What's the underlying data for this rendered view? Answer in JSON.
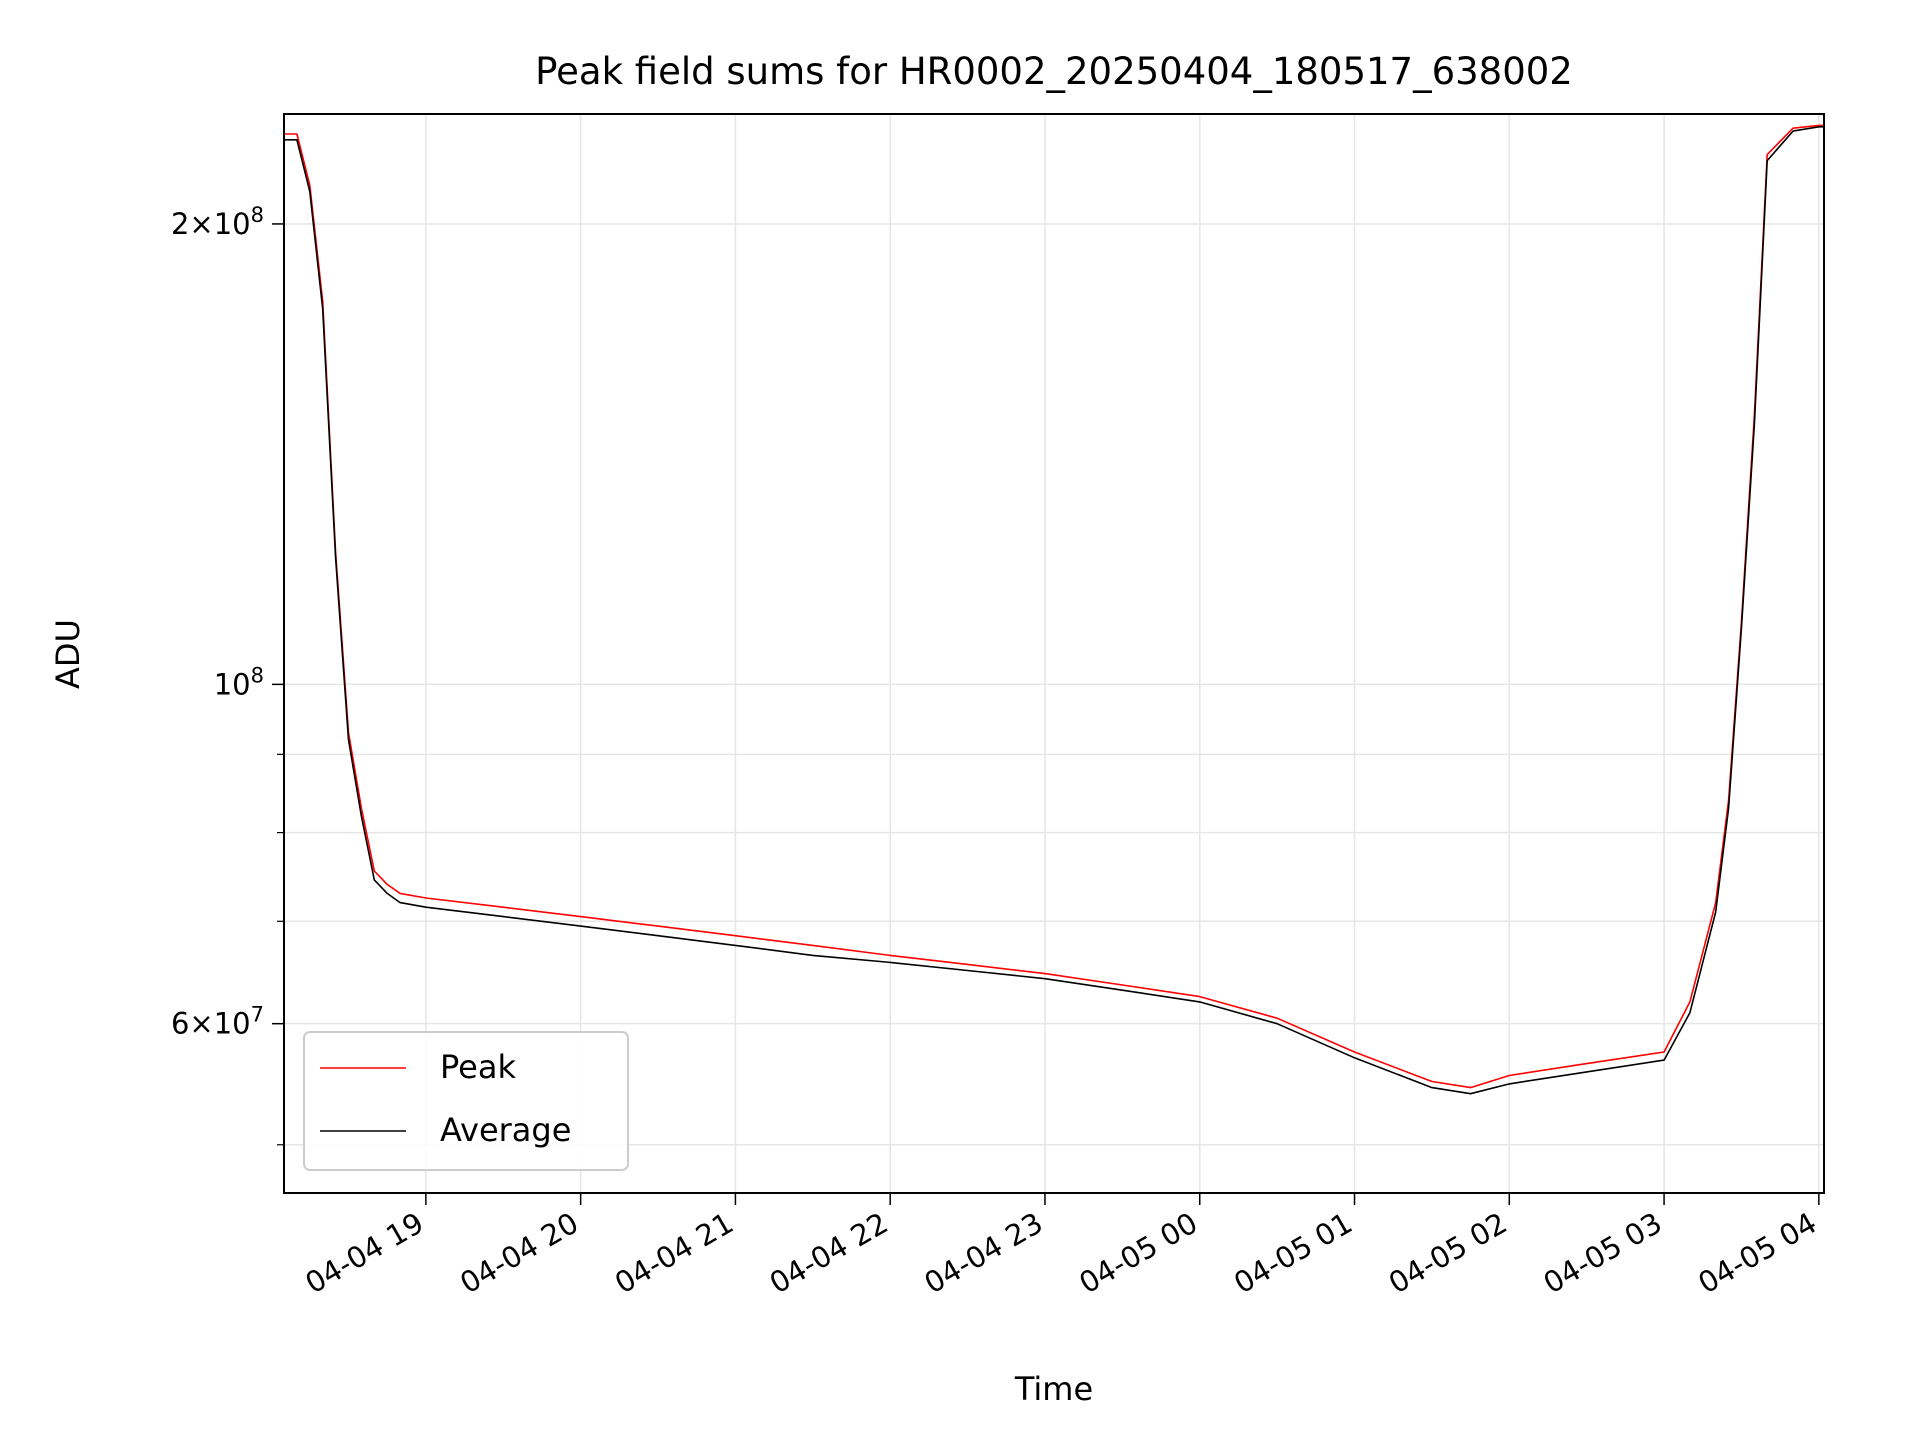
{
  "chart_data": {
    "type": "line",
    "title": "Peak field sums for HR0002_20250404_180517_638002",
    "xlabel": "Time",
    "ylabel": "ADU",
    "yscale": "log",
    "grid": true,
    "legend_position": "lower-left",
    "xlim": [
      "2025-04-04 18:05",
      "2025-04-05 04:02"
    ],
    "ylim": [
      46500000,
      236000000
    ],
    "x_ticks": [
      {
        "value": "2025-04-04 19:00",
        "label": "04-04 19"
      },
      {
        "value": "2025-04-04 20:00",
        "label": "04-04 20"
      },
      {
        "value": "2025-04-04 21:00",
        "label": "04-04 21"
      },
      {
        "value": "2025-04-04 22:00",
        "label": "04-04 22"
      },
      {
        "value": "2025-04-04 23:00",
        "label": "04-04 23"
      },
      {
        "value": "2025-04-05 00:00",
        "label": "04-05 00"
      },
      {
        "value": "2025-04-05 01:00",
        "label": "04-05 01"
      },
      {
        "value": "2025-04-05 02:00",
        "label": "04-05 02"
      },
      {
        "value": "2025-04-05 03:00",
        "label": "04-05 03"
      },
      {
        "value": "2025-04-05 04:00",
        "label": "04-05 04"
      }
    ],
    "y_major_ticks": [
      {
        "value": 200000000,
        "mant": "2",
        "base": "10",
        "exp": "8"
      },
      {
        "value": 100000000,
        "mant": "",
        "base": "10",
        "exp": "8"
      },
      {
        "value": 60000000,
        "mant": "6",
        "base": "10",
        "exp": "7"
      }
    ],
    "y_minor_ticks": [
      50000000,
      70000000,
      80000000,
      90000000
    ],
    "series": [
      {
        "name": "Peak",
        "color": "#ff0000",
        "x": [
          "2025-04-04 18:05",
          "2025-04-04 18:10",
          "2025-04-04 18:15",
          "2025-04-04 18:20",
          "2025-04-04 18:25",
          "2025-04-04 18:30",
          "2025-04-04 18:35",
          "2025-04-04 18:40",
          "2025-04-04 18:45",
          "2025-04-04 18:50",
          "2025-04-04 19:00",
          "2025-04-04 19:30",
          "2025-04-04 20:00",
          "2025-04-04 20:30",
          "2025-04-04 21:00",
          "2025-04-04 21:30",
          "2025-04-04 22:00",
          "2025-04-04 22:30",
          "2025-04-04 23:00",
          "2025-04-04 23:30",
          "2025-04-05 00:00",
          "2025-04-05 00:30",
          "2025-04-05 01:00",
          "2025-04-05 01:30",
          "2025-04-05 01:45",
          "2025-04-05 02:00",
          "2025-04-05 02:30",
          "2025-04-05 03:00",
          "2025-04-05 03:10",
          "2025-04-05 03:20",
          "2025-04-05 03:25",
          "2025-04-05 03:30",
          "2025-04-05 03:35",
          "2025-04-05 03:40",
          "2025-04-05 03:50",
          "2025-04-05 04:00",
          "2025-04-05 04:02"
        ],
        "y": [
          229000000,
          229000000,
          212000000,
          178000000,
          122000000,
          93000000,
          83000000,
          75500000,
          74000000,
          73000000,
          72500000,
          71500000,
          70500000,
          69500000,
          68500000,
          67500000,
          66500000,
          65600000,
          64700000,
          63600000,
          62500000,
          60500000,
          57500000,
          55000000,
          54500000,
          55500000,
          56500000,
          57500000,
          62000000,
          72000000,
          84000000,
          110000000,
          150000000,
          222000000,
          231000000,
          232000000,
          232000000
        ]
      },
      {
        "name": "Average",
        "color": "#000000",
        "x": [
          "2025-04-04 18:05",
          "2025-04-04 18:10",
          "2025-04-04 18:15",
          "2025-04-04 18:20",
          "2025-04-04 18:25",
          "2025-04-04 18:30",
          "2025-04-04 18:35",
          "2025-04-04 18:40",
          "2025-04-04 18:45",
          "2025-04-04 18:50",
          "2025-04-04 19:00",
          "2025-04-04 19:30",
          "2025-04-04 20:00",
          "2025-04-04 20:30",
          "2025-04-04 21:00",
          "2025-04-04 21:30",
          "2025-04-04 22:00",
          "2025-04-04 22:30",
          "2025-04-04 23:00",
          "2025-04-04 23:30",
          "2025-04-05 00:00",
          "2025-04-05 00:30",
          "2025-04-05 01:00",
          "2025-04-05 01:30",
          "2025-04-05 01:45",
          "2025-04-05 02:00",
          "2025-04-05 02:30",
          "2025-04-05 03:00",
          "2025-04-05 03:10",
          "2025-04-05 03:20",
          "2025-04-05 03:25",
          "2025-04-05 03:30",
          "2025-04-05 03:35",
          "2025-04-05 03:40",
          "2025-04-05 03:50",
          "2025-04-05 04:00",
          "2025-04-05 04:02"
        ],
        "y": [
          227000000,
          227000000,
          210000000,
          176000000,
          121000000,
          92000000,
          82000000,
          74500000,
          73000000,
          72000000,
          71500000,
          70500000,
          69500000,
          68500000,
          67500000,
          66500000,
          65800000,
          65000000,
          64200000,
          63100000,
          62000000,
          60000000,
          57000000,
          54500000,
          54000000,
          54800000,
          55800000,
          56800000,
          61000000,
          71000000,
          83000000,
          109000000,
          148000000,
          220000000,
          230000000,
          231500000,
          231500000
        ]
      }
    ]
  }
}
